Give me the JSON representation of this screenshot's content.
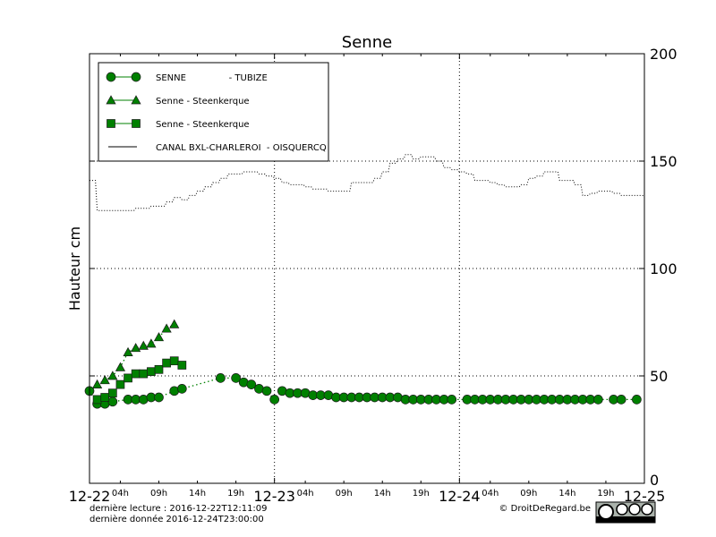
{
  "chart_data": {
    "type": "line",
    "title": "Senne",
    "ylabel": "Hauteur cm",
    "xlabel": "",
    "ylim": [
      0,
      200
    ],
    "xlim": [
      "2016-12-22T00:00",
      "2016-12-25T00:00"
    ],
    "yticks": [
      "0",
      "50",
      "100",
      "150",
      "200"
    ],
    "xticks_major": [
      {
        "hour": 0,
        "label": "12-22"
      },
      {
        "hour": 24,
        "label": "12-23"
      },
      {
        "hour": 48,
        "label": "12-24"
      },
      {
        "hour": 72,
        "label": "12-25"
      }
    ],
    "xticks_minor": [
      {
        "hour": 4,
        "label": "04h"
      },
      {
        "hour": 9,
        "label": "09h"
      },
      {
        "hour": 14,
        "label": "14h"
      },
      {
        "hour": 19,
        "label": "19h"
      },
      {
        "hour": 28,
        "label": "04h"
      },
      {
        "hour": 33,
        "label": "09h"
      },
      {
        "hour": 38,
        "label": "14h"
      },
      {
        "hour": 43,
        "label": "19h"
      },
      {
        "hour": 52,
        "label": "04h"
      },
      {
        "hour": 57,
        "label": "09h"
      },
      {
        "hour": 62,
        "label": "14h"
      },
      {
        "hour": 67,
        "label": "19h"
      }
    ],
    "grid": true,
    "legend_placement": "top-left",
    "series": [
      {
        "name": "SENNE               - TUBIZE",
        "marker": "circle",
        "color": "#008000",
        "x_hours": [
          0,
          1,
          2,
          3,
          5,
          6,
          7,
          8,
          9,
          11,
          12,
          17,
          19,
          20,
          21,
          22,
          23,
          24,
          25,
          26,
          27,
          28,
          29,
          30,
          31,
          32,
          33,
          34,
          35,
          36,
          37,
          38,
          39,
          40,
          41,
          42,
          43,
          44,
          45,
          46,
          47,
          49,
          50,
          51,
          52,
          53,
          54,
          55,
          56,
          57,
          58,
          59,
          60,
          61,
          62,
          63,
          64,
          65,
          66,
          68,
          69,
          71
        ],
        "values": [
          43,
          37,
          37,
          38,
          39,
          39,
          39,
          40,
          40,
          43,
          44,
          49,
          49,
          47,
          46,
          44,
          43,
          39,
          43,
          42,
          42,
          42,
          41,
          41,
          41,
          40,
          40,
          40,
          40,
          40,
          40,
          40,
          40,
          40,
          39,
          39,
          39,
          39,
          39,
          39,
          39,
          39,
          39,
          39,
          39,
          39,
          39,
          39,
          39,
          39,
          39,
          39,
          39,
          39,
          39,
          39,
          39,
          39,
          39,
          39,
          39,
          39
        ]
      },
      {
        "name": "Senne - Steenkerque",
        "marker": "triangle",
        "color": "#008000",
        "x_hours": [
          1,
          2,
          3,
          4,
          5,
          6,
          7,
          8,
          9,
          10,
          11
        ],
        "values": [
          46,
          48,
          50,
          54,
          61,
          63,
          64,
          65,
          68,
          72,
          74
        ]
      },
      {
        "name": "Senne - Steenkerque",
        "marker": "square",
        "color": "#008000",
        "x_hours": [
          1,
          2,
          3,
          4,
          5,
          6,
          7,
          8,
          9,
          10,
          11,
          12
        ],
        "values": [
          39,
          40,
          42,
          46,
          49,
          51,
          51,
          52,
          53,
          56,
          57,
          55
        ]
      },
      {
        "name": "CANAL BXL-CHARLEROI  - OISQUERCQ",
        "marker": "none",
        "color": "#000000",
        "x_hours": [
          0,
          1,
          2,
          3,
          4,
          5,
          6,
          7,
          8,
          9,
          10,
          11,
          12,
          13,
          14,
          15,
          16,
          17,
          18,
          19,
          20,
          21,
          22,
          23,
          24,
          25,
          26,
          27,
          28,
          29,
          30,
          31,
          32,
          33,
          34,
          35,
          36,
          37,
          38,
          39,
          40,
          41,
          42,
          43,
          44,
          45,
          46,
          47,
          48,
          49,
          50,
          51,
          52,
          53,
          54,
          55,
          56,
          57,
          58,
          59,
          60,
          61,
          62,
          63,
          64,
          65,
          66,
          67,
          68,
          69,
          70,
          71,
          72
        ],
        "values": [
          141,
          127,
          127,
          127,
          127,
          127,
          128,
          128,
          129,
          129,
          131,
          133,
          132,
          134,
          136,
          138,
          140,
          142,
          144,
          144,
          145,
          145,
          144,
          143,
          142,
          140,
          139,
          139,
          138,
          137,
          137,
          136,
          136,
          136,
          140,
          140,
          140,
          142,
          145,
          149,
          151,
          153,
          151,
          152,
          152,
          150,
          147,
          146,
          145,
          144,
          141,
          141,
          140,
          139,
          138,
          138,
          139,
          142,
          143,
          145,
          145,
          141,
          141,
          139,
          134,
          135,
          136,
          136,
          135,
          134,
          134,
          134,
          133
        ]
      }
    ]
  },
  "footer": {
    "last_read": "dernière lecture : 2016-12-22T12:11:09",
    "last_data": "dernière donnée  2016-12-24T23:00:00",
    "copyright": "© DroitDeRegard.be",
    "license_badge": "CC BY NC SA"
  }
}
